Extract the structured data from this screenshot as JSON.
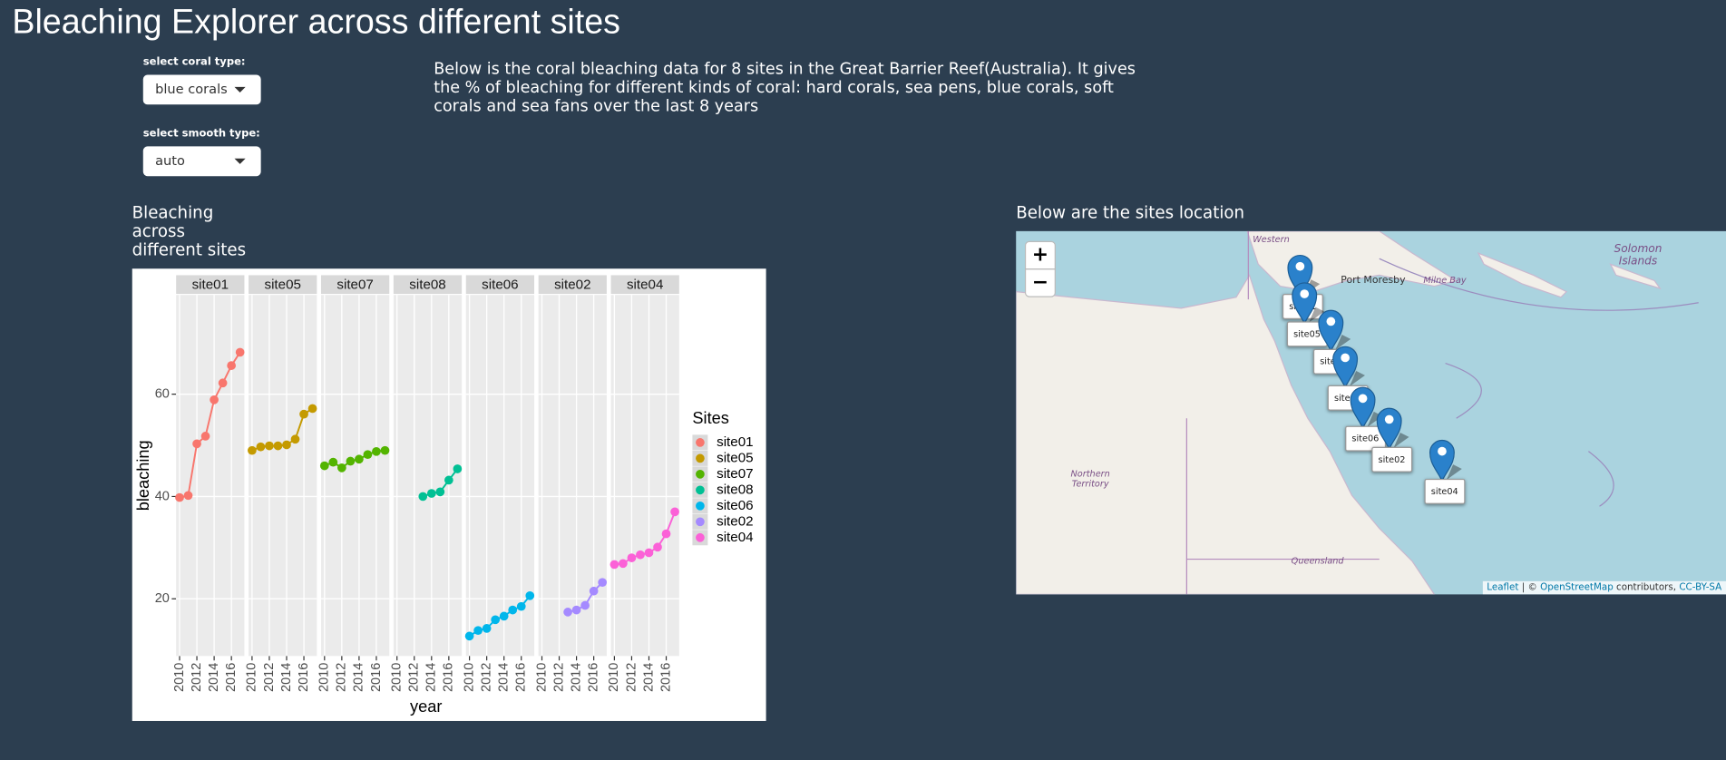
{
  "header": {
    "title": "Bleaching Explorer across different sites"
  },
  "controls": [
    {
      "label": "select coral type:",
      "value": "blue corals"
    },
    {
      "label": "select smooth type:",
      "value": "auto"
    }
  ],
  "description": "Below is the coral bleaching data for 8 sites in the Great Barrier Reef(Australia). It gives the % of bleaching for different kinds of coral: hard corals, sea pens, blue corals, soft corals and sea fans over the last 8 years",
  "plot_heading": "Bleaching across different sites",
  "chart_data": {
    "type": "line",
    "xlabel": "year",
    "ylabel": "bleaching",
    "legend_title": "Sites",
    "xlim": [
      2009.6,
      2017.5
    ],
    "xticks": [
      2010,
      2012,
      2014,
      2016
    ],
    "ylim": [
      8.8,
      79.4
    ],
    "yticks": [
      20,
      40,
      60
    ],
    "grid": true,
    "series": [
      {
        "name": "site01",
        "color": "#F8766D",
        "x": [
          2010,
          2011,
          2012,
          2013,
          2014,
          2015,
          2016,
          2017
        ],
        "values": [
          39.8,
          40.2,
          50.3,
          51.8,
          58.9,
          62.2,
          65.6,
          68.2
        ]
      },
      {
        "name": "site05",
        "color": "#C49A00",
        "x": [
          2010,
          2011,
          2012,
          2013,
          2014,
          2015,
          2016,
          2017
        ],
        "values": [
          49.0,
          49.7,
          49.9,
          49.9,
          50.1,
          51.2,
          56.1,
          57.2
        ]
      },
      {
        "name": "site07",
        "color": "#53B400",
        "x": [
          2010,
          2011,
          2012,
          2013,
          2014,
          2015,
          2016,
          2017
        ],
        "values": [
          46.0,
          46.7,
          45.6,
          46.9,
          47.3,
          48.2,
          48.8,
          49.0
        ]
      },
      {
        "name": "site08",
        "color": "#00C094",
        "x": [
          2013,
          2014,
          2015,
          2016,
          2017
        ],
        "values": [
          40.0,
          40.6,
          40.9,
          43.2,
          45.4
        ]
      },
      {
        "name": "site06",
        "color": "#00B6EB",
        "x": [
          2010,
          2011,
          2012,
          2013,
          2014,
          2015,
          2016,
          2017
        ],
        "values": [
          12.7,
          13.8,
          14.2,
          15.9,
          16.6,
          17.8,
          18.5,
          20.6
        ]
      },
      {
        "name": "site02",
        "color": "#A58AFF",
        "x": [
          2013,
          2014,
          2015,
          2016,
          2017
        ],
        "values": [
          17.4,
          17.8,
          18.7,
          21.5,
          23.2
        ]
      },
      {
        "name": "site04",
        "color": "#FB61D7",
        "x": [
          2010,
          2011,
          2012,
          2013,
          2014,
          2015,
          2016,
          2017
        ],
        "values": [
          26.7,
          26.9,
          28.0,
          28.6,
          29.0,
          30.1,
          32.7,
          37.0
        ]
      }
    ]
  },
  "map": {
    "heading": "Below are the sites location",
    "zoom": [
      "+",
      "−"
    ],
    "places": [
      "Western",
      "Port Moresby",
      "Milne Bay",
      "Solomon Islands",
      "Northern Territory",
      "Queensland"
    ],
    "markers": [
      "site01",
      "site05",
      "site07",
      "site08",
      "site06",
      "site02",
      "site04"
    ],
    "attribution": [
      "Leaflet",
      "| ©",
      "OpenStreetMap",
      "contributors,",
      "CC-BY-SA"
    ]
  }
}
